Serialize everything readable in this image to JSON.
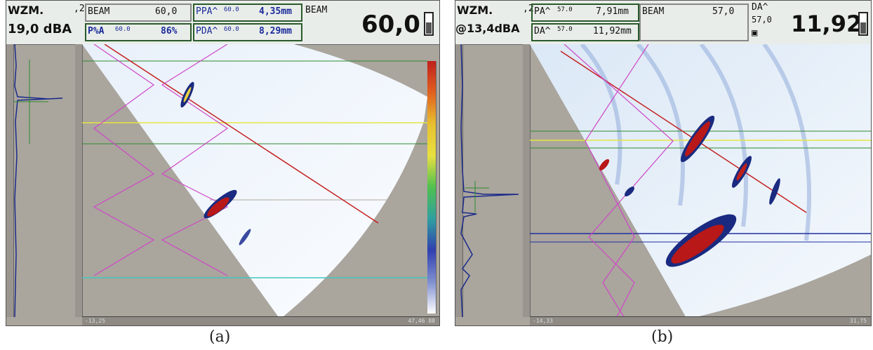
{
  "panel_a": {
    "mode": "WZM.",
    "mode_suffix": ",2",
    "gain": "19,0 dBA",
    "beam_label": "BEAM",
    "beam_value": "60,0",
    "psa_label": "P%A",
    "psa_small": "60.0",
    "psa_value": "86%",
    "ppa_label": "PPA^",
    "ppa_small": "60.0",
    "ppa_value": "4,35mm",
    "pda_label": "PDA^",
    "pda_small": "60.0",
    "pda_value": "8,29mm",
    "big_label": "BEAM",
    "big_value": "60,0",
    "ruler_start": "-13,25",
    "ruler_end": "47,46 88",
    "caption": "(a)"
  },
  "panel_b": {
    "mode": "WZM.",
    "mode_suffix": ",2",
    "gain": "@13,4dBA",
    "pa_label": "PA^",
    "pa_small": "57.0",
    "pa_value": "7,91mm",
    "beam_label": "BEAM",
    "beam_value": "57,0",
    "da_label": "DA^",
    "da_small": "57.0",
    "da_value": "11,92mm",
    "da2_label": "DA^",
    "da2_small": "57,0",
    "big_value": "11,92",
    "ruler_start": "-14,33",
    "ruler_end": "31,75",
    "caption": "(b)"
  },
  "colors": {
    "background": "#aaa59d",
    "scan_fill": "#f4f8fc",
    "magenta": "#d046c8",
    "red": "#c42020",
    "green": "#2e8a2e",
    "yellow": "#e6e640",
    "cyan": "#40c8c0",
    "blue": "#2030a0"
  }
}
